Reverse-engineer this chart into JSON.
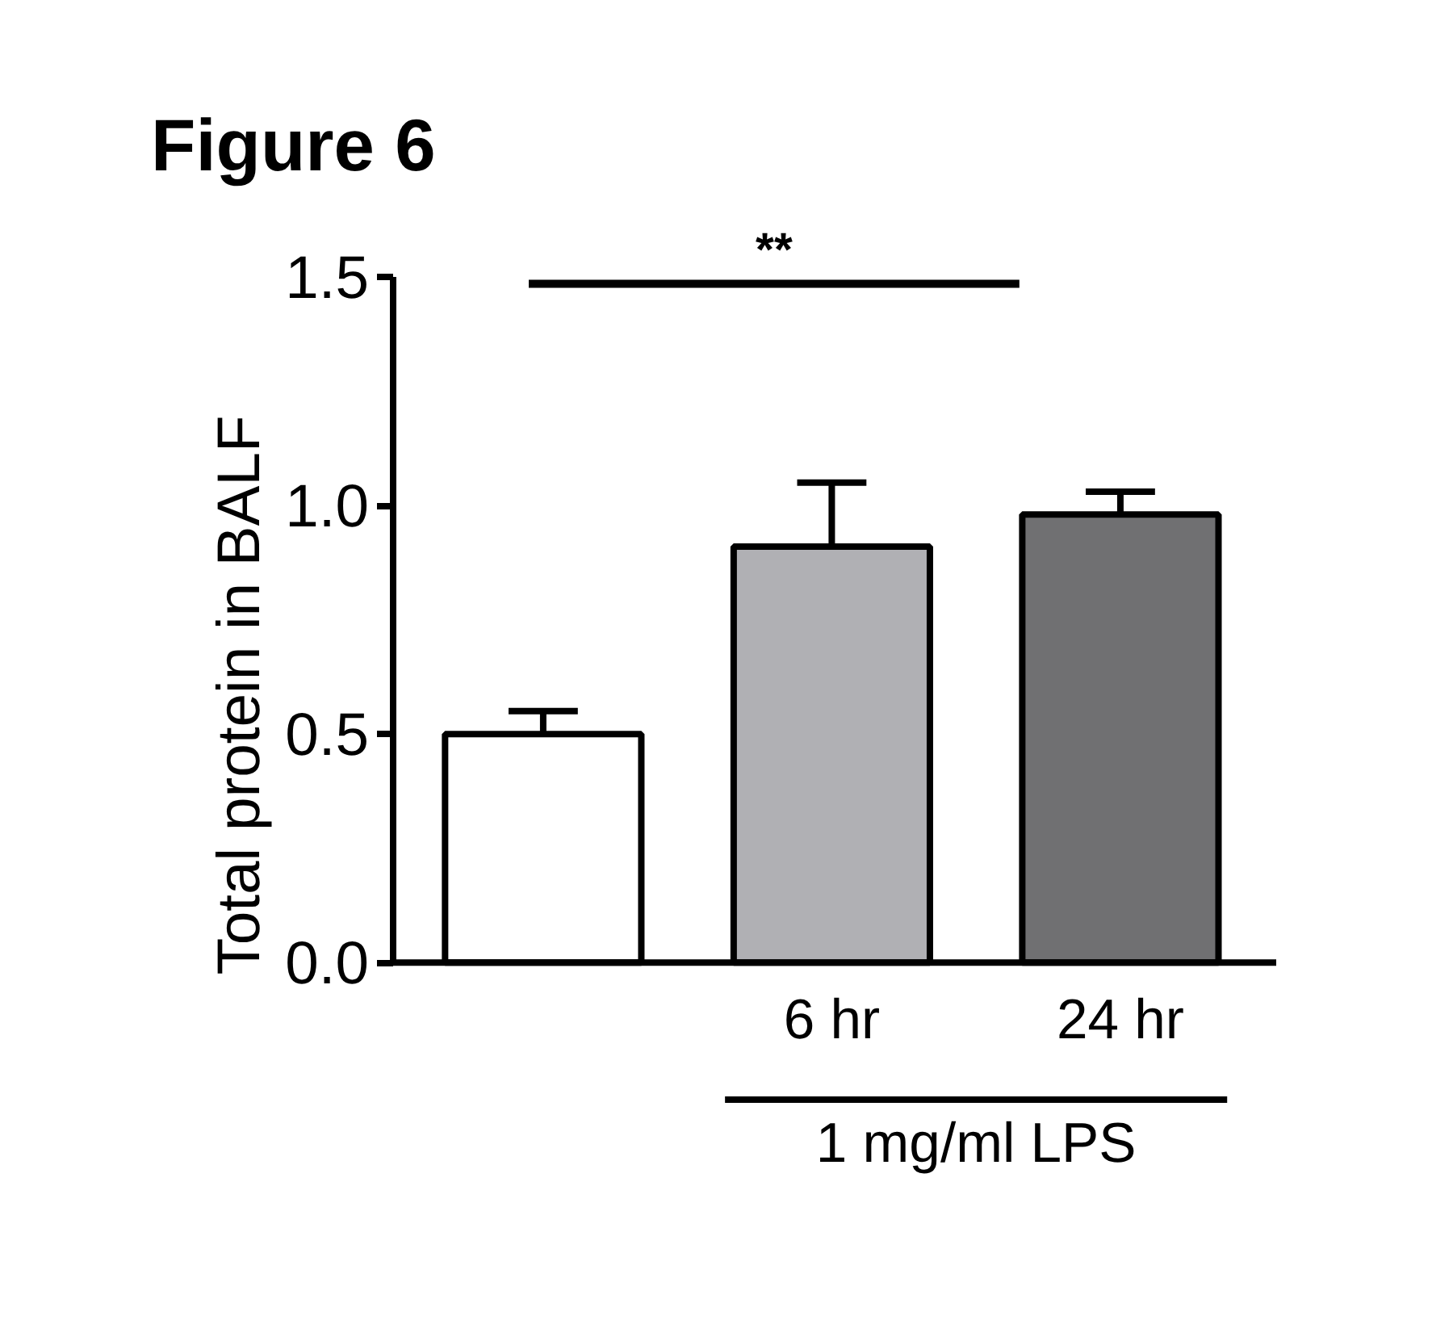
{
  "chart_data": {
    "type": "bar",
    "title": "Figure 6",
    "ylabel": "Total protein in BALF",
    "categories": [
      null,
      "6 hr",
      "24 hr"
    ],
    "values": [
      0.5,
      0.91,
      0.98
    ],
    "colors": [
      "#ffffff",
      "#b0b0b4",
      "#707072"
    ],
    "errors": [
      0.05,
      0.14,
      0.05
    ],
    "ylim": [
      0,
      1.5
    ],
    "yticks": [
      {
        "value": 0,
        "label": "0.0"
      },
      {
        "value": 0.5,
        "label": "0.5"
      },
      {
        "value": 1,
        "label": "1.0"
      },
      {
        "value": 1.5,
        "label": "1.5"
      }
    ],
    "annotations": [
      "**",
      "1 mg/ml LPS"
    ],
    "grid": false
  }
}
